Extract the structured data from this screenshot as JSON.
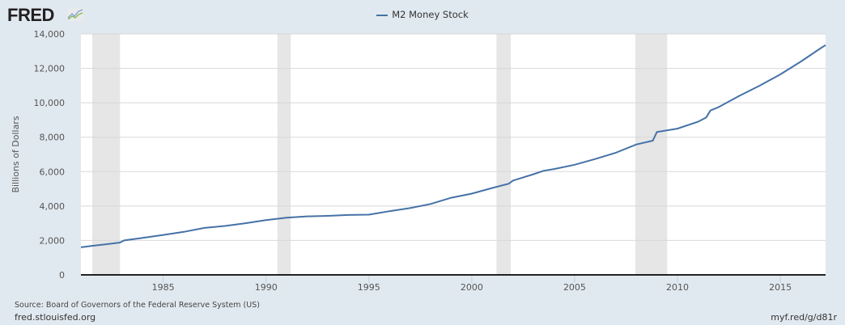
{
  "logo": "FRED",
  "chart_data": {
    "type": "line",
    "title": "",
    "ylabel": "Billions of Dollars",
    "xlabel": "",
    "xlim": [
      1981.0,
      2017.2
    ],
    "ylim": [
      0,
      14000
    ],
    "grid": true,
    "legend_position": "top-center",
    "x_ticks": [
      1985,
      1990,
      1995,
      2000,
      2005,
      2010,
      2015
    ],
    "y_ticks": [
      0,
      2000,
      4000,
      6000,
      8000,
      10000,
      12000,
      14000
    ],
    "y_tick_labels": [
      "0",
      "2,000",
      "4,000",
      "6,000",
      "8,000",
      "10,000",
      "12,000",
      "14,000"
    ],
    "recessions": [
      [
        1981.55,
        1982.9
      ],
      [
        1990.55,
        1991.2
      ],
      [
        2001.2,
        2001.9
      ],
      [
        2007.95,
        2009.5
      ]
    ],
    "series": [
      {
        "name": "M2 Money Stock",
        "color": "#4572a7",
        "x": [
          1981.0,
          1981.5,
          1982.0,
          1982.9,
          1983.1,
          1984.0,
          1985.0,
          1986.0,
          1987.0,
          1988.0,
          1989.0,
          1990.0,
          1991.0,
          1992.0,
          1993.0,
          1994.0,
          1995.0,
          1995.5,
          1996.0,
          1997.0,
          1998.0,
          1999.0,
          2000.0,
          2001.0,
          2001.8,
          2002.0,
          2003.0,
          2003.5,
          2004.0,
          2005.0,
          2006.0,
          2007.0,
          2008.0,
          2008.8,
          2009.0,
          2010.0,
          2011.0,
          2011.4,
          2011.6,
          2012.0,
          2013.0,
          2014.0,
          2015.0,
          2016.0,
          2017.0,
          2017.2
        ],
        "y": [
          1600,
          1680,
          1750,
          1880,
          2000,
          2150,
          2320,
          2500,
          2730,
          2840,
          3000,
          3180,
          3320,
          3400,
          3430,
          3480,
          3500,
          3600,
          3700,
          3880,
          4120,
          4480,
          4720,
          5050,
          5300,
          5480,
          5850,
          6050,
          6150,
          6400,
          6730,
          7100,
          7580,
          7800,
          8300,
          8500,
          8900,
          9150,
          9550,
          9750,
          10400,
          11000,
          11650,
          12400,
          13200,
          13350
        ]
      }
    ]
  },
  "footer": {
    "source": "Source: Board of Governors of the Federal Reserve System (US)",
    "site": "fred.stlouisfed.org",
    "link": "myf.red/g/d81r"
  }
}
